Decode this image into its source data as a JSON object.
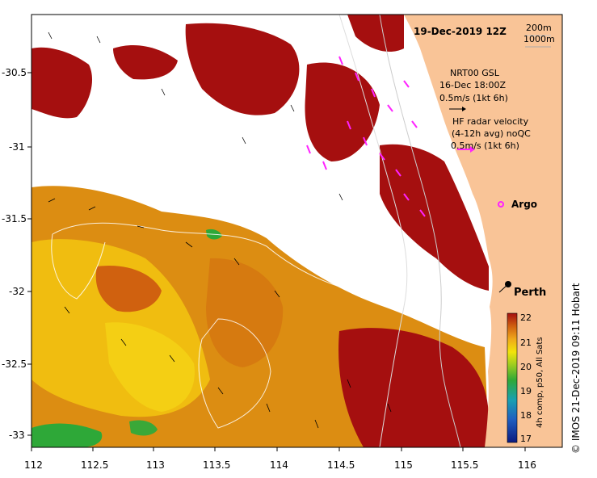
{
  "map": {
    "date_title": "19-Dec-2019 12Z",
    "depth_labels": [
      "200m",
      "1000m"
    ],
    "x_ticks": [
      "112",
      "112.5",
      "113",
      "113.5",
      "114",
      "114.5",
      "115",
      "115.5",
      "116"
    ],
    "y_ticks": [
      "-30.5",
      "-31",
      "-31.5",
      "-32",
      "-32.5",
      "-33"
    ],
    "gsl_label_line1": "NRT00 GSL",
    "gsl_label_line2": "16-Dec 18:00Z",
    "gsl_label_line3": "0.5m/s (1kt 6h)",
    "hf_label_line1": "HF radar velocity",
    "hf_label_line2": "(4-12h avg) noQC",
    "hf_label_line3": "0.5m/s (1kt 6h)",
    "argo_label": "Argo",
    "city_label": "Perth",
    "credit": "© IMOS 21-Dec-2019 09:11 Hobart",
    "colorbar_title": "4h comp, p50, All Sats",
    "colorbar_ticks": [
      "22",
      "21",
      "20",
      "19",
      "18",
      "17"
    ],
    "colors": {
      "land": "#f9c497",
      "hot": "#a50f0f",
      "warm_orange": "#dd8a10",
      "warm_yellow": "#f2c30a",
      "green": "#2ea838",
      "argo": "#ff22ff",
      "hf_arrow": "#ff22ff"
    }
  }
}
